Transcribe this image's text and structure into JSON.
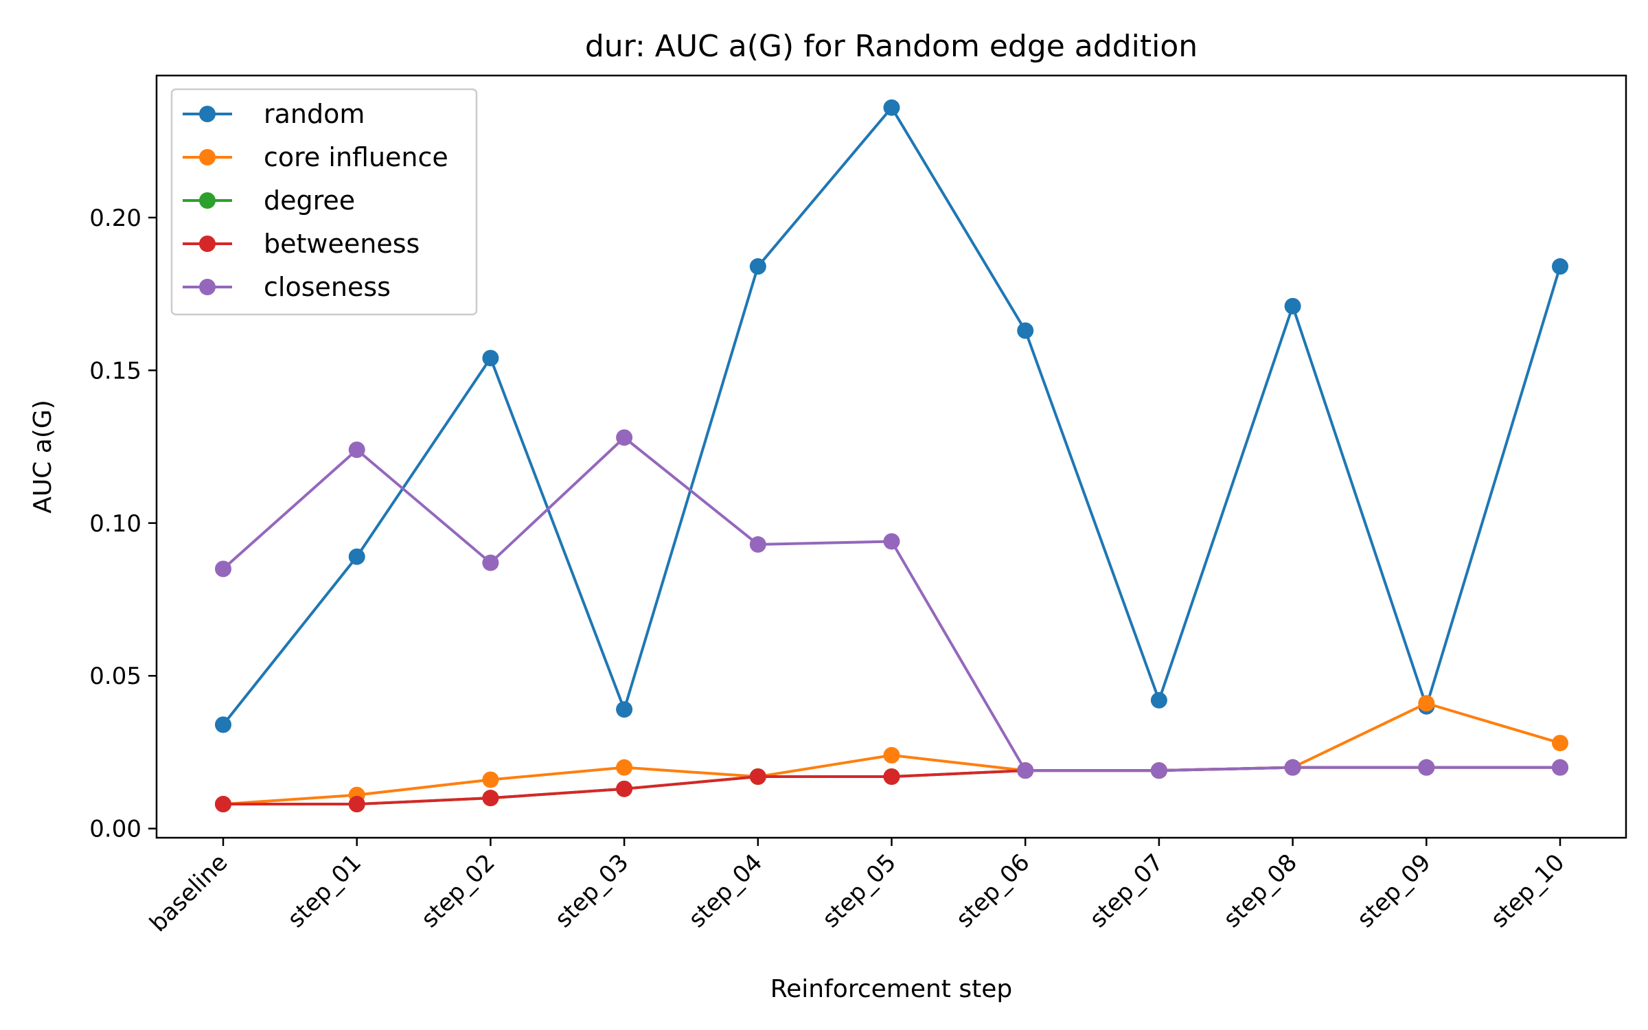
{
  "chart_data": {
    "type": "line",
    "title": "dur: AUC a(G) for Random edge addition",
    "xlabel": "Reinforcement step",
    "ylabel": "AUC a(G)",
    "categories": [
      "baseline",
      "step_01",
      "step_02",
      "step_03",
      "step_04",
      "step_05",
      "step_06",
      "step_07",
      "step_08",
      "step_09",
      "step_10"
    ],
    "ylim": [
      -0.003,
      0.2465
    ],
    "yticks": [
      0.0,
      0.05,
      0.1,
      0.15,
      0.2
    ],
    "ytick_labels": [
      "0.00",
      "0.05",
      "0.10",
      "0.15",
      "0.20"
    ],
    "grid": false,
    "legend_position": "top-left",
    "series": [
      {
        "name": "random",
        "color": "#1f77b4",
        "values": [
          0.034,
          0.089,
          0.154,
          0.039,
          0.184,
          0.236,
          0.163,
          0.042,
          0.171,
          0.04,
          0.184
        ]
      },
      {
        "name": "core influence",
        "color": "#ff7f0e",
        "values": [
          0.008,
          0.011,
          0.016,
          0.02,
          0.017,
          0.024,
          0.019,
          0.019,
          0.02,
          0.041,
          0.028
        ]
      },
      {
        "name": "degree",
        "color": "#2ca02c",
        "values": [
          0.008,
          0.008,
          0.01,
          0.013,
          0.017,
          0.017,
          0.019,
          0.019,
          0.02,
          0.02,
          0.02
        ]
      },
      {
        "name": "betweeness",
        "color": "#d62728",
        "values": [
          0.008,
          0.008,
          0.01,
          0.013,
          0.017,
          0.017,
          0.019,
          0.019,
          0.02,
          0.02,
          0.02
        ]
      },
      {
        "name": "closeness",
        "color": "#9467bd",
        "values": [
          0.085,
          0.124,
          0.087,
          0.128,
          0.093,
          0.094,
          0.019,
          0.019,
          0.02,
          0.02,
          0.02
        ]
      }
    ]
  }
}
